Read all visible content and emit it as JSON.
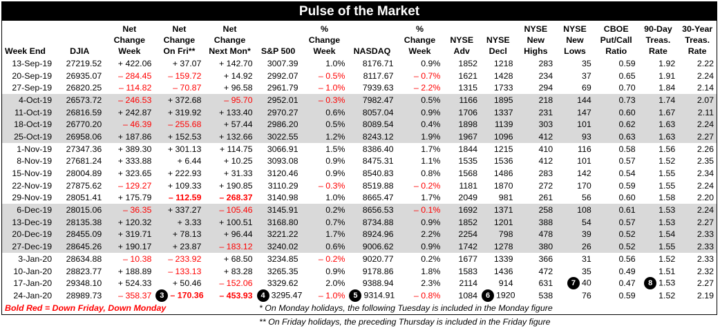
{
  "title": "Pulse of the Market",
  "headers": [
    "Week End",
    "DJIA",
    "Net\nChange\nWeek",
    "Net\nChange\nOn Fri**",
    "Net\nChange\nNext Mon*",
    "S&P 500",
    "%\nChange\nWeek",
    "NASDAQ",
    "%\nChange\nWeek",
    "NYSE\nAdv",
    "NYSE\nDecl",
    "NYSE\nNew\nHighs",
    "NYSE\nNew\nLows",
    "CBOE\nPut/Call\nRatio",
    "90-Day\nTreas.\nRate",
    "30-Year\nTreas.\nRate"
  ],
  "rows": [
    {
      "cells": [
        "13-Sep-19",
        "27219.52",
        "+ 422.06",
        "+ 37.07",
        "+ 142.70",
        "3007.39",
        "1.0%",
        "8176.71",
        "0.9%",
        "1852",
        "1218",
        "283",
        "35",
        "0.59",
        "1.92",
        "2.22"
      ]
    },
    {
      "cells": [
        "20-Sep-19",
        "26935.07",
        "– 284.45",
        "– 159.72",
        "+ 14.92",
        "2992.07",
        "– 0.5%",
        "8117.67",
        "– 0.7%",
        "1621",
        "1428",
        "234",
        "37",
        "0.65",
        "1.91",
        "2.24"
      ]
    },
    {
      "cells": [
        "27-Sep-19",
        "26820.25",
        "– 114.82",
        "– 70.87",
        "+ 96.58",
        "2961.79",
        "– 1.0%",
        "7939.63",
        "– 2.2%",
        "1315",
        "1733",
        "294",
        "69",
        "0.70",
        "1.84",
        "2.14"
      ]
    },
    {
      "cells": [
        "4-Oct-19",
        "26573.72",
        "– 246.53",
        "+ 372.68",
        "– 95.70",
        "2952.01",
        "– 0.3%",
        "7982.47",
        "0.5%",
        "1166",
        "1895",
        "218",
        "144",
        "0.73",
        "1.74",
        "2.07"
      ]
    },
    {
      "cells": [
        "11-Oct-19",
        "26816.59",
        "+ 242.87",
        "+ 319.92",
        "+ 133.40",
        "2970.27",
        "0.6%",
        "8057.04",
        "0.9%",
        "1706",
        "1337",
        "231",
        "147",
        "0.60",
        "1.67",
        "2.11"
      ]
    },
    {
      "cells": [
        "18-Oct-19",
        "26770.20",
        "– 46.39",
        "– 255.68",
        "+ 57.44",
        "2986.20",
        "0.5%",
        "8089.54",
        "0.4%",
        "1898",
        "1139",
        "303",
        "101",
        "0.62",
        "1.63",
        "2.24"
      ]
    },
    {
      "cells": [
        "25-Oct-19",
        "26958.06",
        "+ 187.86",
        "+ 152.53",
        "+ 132.66",
        "3022.55",
        "1.2%",
        "8243.12",
        "1.9%",
        "1967",
        "1096",
        "412",
        "93",
        "0.63",
        "1.63",
        "2.27"
      ]
    },
    {
      "cells": [
        "1-Nov-19",
        "27347.36",
        "+ 389.30",
        "+ 301.13",
        "+ 114.75",
        "3066.91",
        "1.5%",
        "8386.40",
        "1.7%",
        "1844",
        "1215",
        "410",
        "116",
        "0.58",
        "1.56",
        "2.26"
      ]
    },
    {
      "cells": [
        "8-Nov-19",
        "27681.24",
        "+ 333.88",
        "+ 6.44",
        "+ 10.25",
        "3093.08",
        "0.9%",
        "8475.31",
        "1.1%",
        "1535",
        "1536",
        "412",
        "101",
        "0.57",
        "1.52",
        "2.35"
      ]
    },
    {
      "cells": [
        "15-Nov-19",
        "28004.89",
        "+ 323.65",
        "+ 222.93",
        "+ 31.33",
        "3120.46",
        "0.9%",
        "8540.83",
        "0.8%",
        "1568",
        "1486",
        "283",
        "142",
        "0.54",
        "1.55",
        "2.34"
      ]
    },
    {
      "cells": [
        "22-Nov-19",
        "27875.62",
        "– 129.27",
        "+ 109.33",
        "+ 190.85",
        "3110.29",
        "– 0.3%",
        "8519.88",
        "– 0.2%",
        "1181",
        "1870",
        "272",
        "170",
        "0.59",
        "1.55",
        "2.24"
      ]
    },
    {
      "cells": [
        "29-Nov-19",
        "28051.41",
        "+ 175.79",
        "– 112.59",
        "– 268.37",
        "3140.98",
        "1.0%",
        "8665.47",
        "1.7%",
        "2049",
        "981",
        "261",
        "56",
        "0.60",
        "1.58",
        "2.20"
      ]
    },
    {
      "cells": [
        "6-Dec-19",
        "28015.06",
        "– 36.35",
        "+ 337.27",
        "– 105.46",
        "3145.91",
        "0.2%",
        "8656.53",
        "– 0.1%",
        "1692",
        "1371",
        "258",
        "108",
        "0.61",
        "1.53",
        "2.24"
      ]
    },
    {
      "cells": [
        "13-Dec-19",
        "28135.38",
        "+ 120.32",
        "+ 3.33",
        "+ 100.51",
        "3168.80",
        "0.7%",
        "8734.88",
        "0.9%",
        "1852",
        "1201",
        "388",
        "54",
        "0.57",
        "1.53",
        "2.27"
      ]
    },
    {
      "cells": [
        "20-Dec-19",
        "28455.09",
        "+ 319.71",
        "+ 78.13",
        "+ 96.44",
        "3221.22",
        "1.7%",
        "8924.96",
        "2.2%",
        "2254",
        "798",
        "478",
        "39",
        "0.52",
        "1.54",
        "2.33"
      ]
    },
    {
      "cells": [
        "27-Dec-19",
        "28645.26",
        "+ 190.17",
        "+ 23.87",
        "– 183.12",
        "3240.02",
        "0.6%",
        "9006.62",
        "0.9%",
        "1742",
        "1278",
        "380",
        "26",
        "0.52",
        "1.55",
        "2.33"
      ]
    },
    {
      "cells": [
        "3-Jan-20",
        "28634.88",
        "– 10.38",
        "– 233.92",
        "+ 68.50",
        "3234.85",
        "– 0.2%",
        "9020.77",
        "0.2%",
        "1677",
        "1339",
        "366",
        "31",
        "0.56",
        "1.52",
        "2.33"
      ]
    },
    {
      "cells": [
        "10-Jan-20",
        "28823.77",
        "+ 188.89",
        "– 133.13",
        "+ 83.28",
        "3265.35",
        "0.9%",
        "9178.86",
        "1.8%",
        "1583",
        "1436",
        "472",
        "35",
        "0.49",
        "1.51",
        "2.32"
      ]
    },
    {
      "cells": [
        "17-Jan-20",
        "29348.10",
        "+ 524.33",
        "+ 50.46",
        "– 152.06",
        "3329.62",
        "2.0%",
        "9388.94",
        "2.3%",
        "2114",
        "914",
        "631",
        "40",
        "0.47",
        "1.53",
        "2.27"
      ]
    },
    {
      "cells": [
        "24-Jan-20",
        "28989.73",
        "– 358.37",
        "– 170.36",
        "– 453.93",
        "3295.47",
        "– 1.0%",
        "9314.91",
        "– 0.8%",
        "1084",
        "1920",
        "538",
        "76",
        "0.59",
        "1.52",
        "2.19"
      ]
    }
  ],
  "markers": {
    "m3": "3",
    "m4": "4",
    "m5": "5",
    "m6": "6",
    "m7": "7",
    "m8": "8"
  },
  "legend": "Bold Red = Down Friday, Down Monday",
  "note1": "* On Monday holidays, the following Tuesday is included in the Monday figure",
  "note2": "** On Friday holidays, the preceding Thursday is included in the Friday figure",
  "colors": {
    "negative": "#ff0000",
    "title_bg": "#000000",
    "shade": "#d9d9d9"
  }
}
